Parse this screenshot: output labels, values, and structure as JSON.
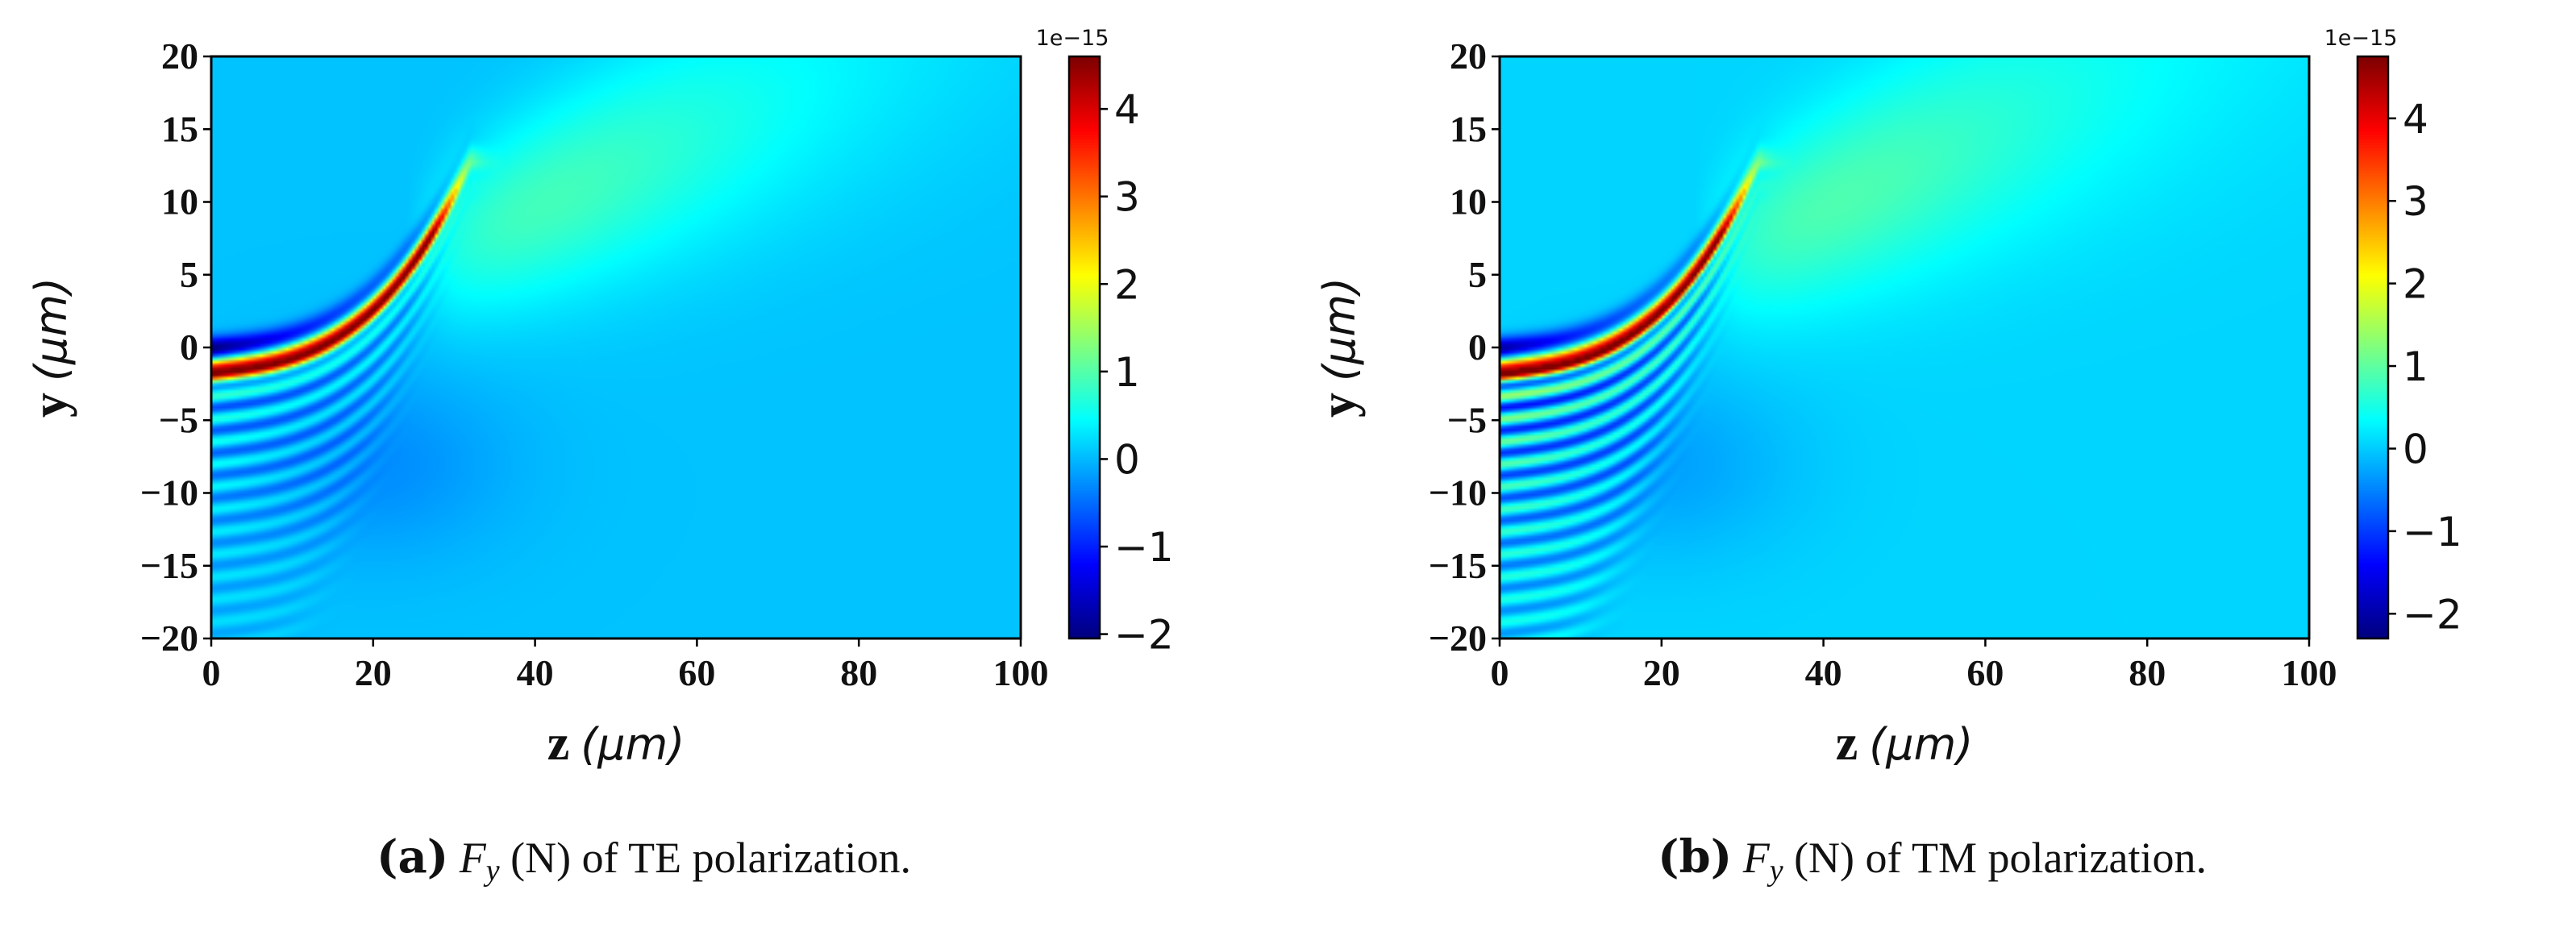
{
  "chart_data": [
    {
      "type": "heatmap",
      "panel_tag": "a",
      "caption": {
        "tag": "(a)",
        "symbol": "F",
        "subscript": "y",
        "text": "(N) of TE polarization."
      },
      "xlabel": {
        "var": "z",
        "unit": "(μm)"
      },
      "ylabel": {
        "var": "y",
        "unit": "(μm)"
      },
      "xlim": [
        0,
        100
      ],
      "ylim": [
        -20,
        20
      ],
      "xticks": [
        "0",
        "20",
        "40",
        "60",
        "80",
        "100"
      ],
      "yticks": [
        "20",
        "15",
        "10",
        "5",
        "0",
        "−5",
        "−10",
        "−15",
        "−20"
      ],
      "colorbar": {
        "colormap": "jet",
        "vmin": -2.05,
        "vmax": 4.6,
        "ticks": [
          "4",
          "3",
          "2",
          "1",
          "0",
          "−1",
          "−2"
        ],
        "tick_values": [
          4,
          3,
          2,
          1,
          0,
          -1,
          -2
        ],
        "scale_label": "1e−15"
      },
      "field": {
        "background": 0.05,
        "fringe_strength": 0.55,
        "fringe_count": 11
      }
    },
    {
      "type": "heatmap",
      "panel_tag": "b",
      "caption": {
        "tag": "(b)",
        "symbol": "F",
        "subscript": "y",
        "text": "(N) of TM polarization."
      },
      "xlabel": {
        "var": "z",
        "unit": "(μm)"
      },
      "ylabel": {
        "var": "y",
        "unit": "(μm)"
      },
      "xlim": [
        0,
        100
      ],
      "ylim": [
        -20,
        20
      ],
      "xticks": [
        "0",
        "20",
        "40",
        "60",
        "80",
        "100"
      ],
      "yticks": [
        "20",
        "15",
        "10",
        "5",
        "0",
        "−5",
        "−10",
        "−15",
        "−20"
      ],
      "colorbar": {
        "colormap": "jet",
        "vmin": -2.3,
        "vmax": 4.75,
        "ticks": [
          "4",
          "3",
          "2",
          "1",
          "0",
          "−1",
          "−2"
        ],
        "tick_values": [
          4,
          3,
          2,
          1,
          0,
          -1,
          -2
        ],
        "scale_label": "1e−15"
      },
      "field": {
        "background": 0.05,
        "fringe_strength": 1.0,
        "fringe_count": 13
      }
    }
  ]
}
